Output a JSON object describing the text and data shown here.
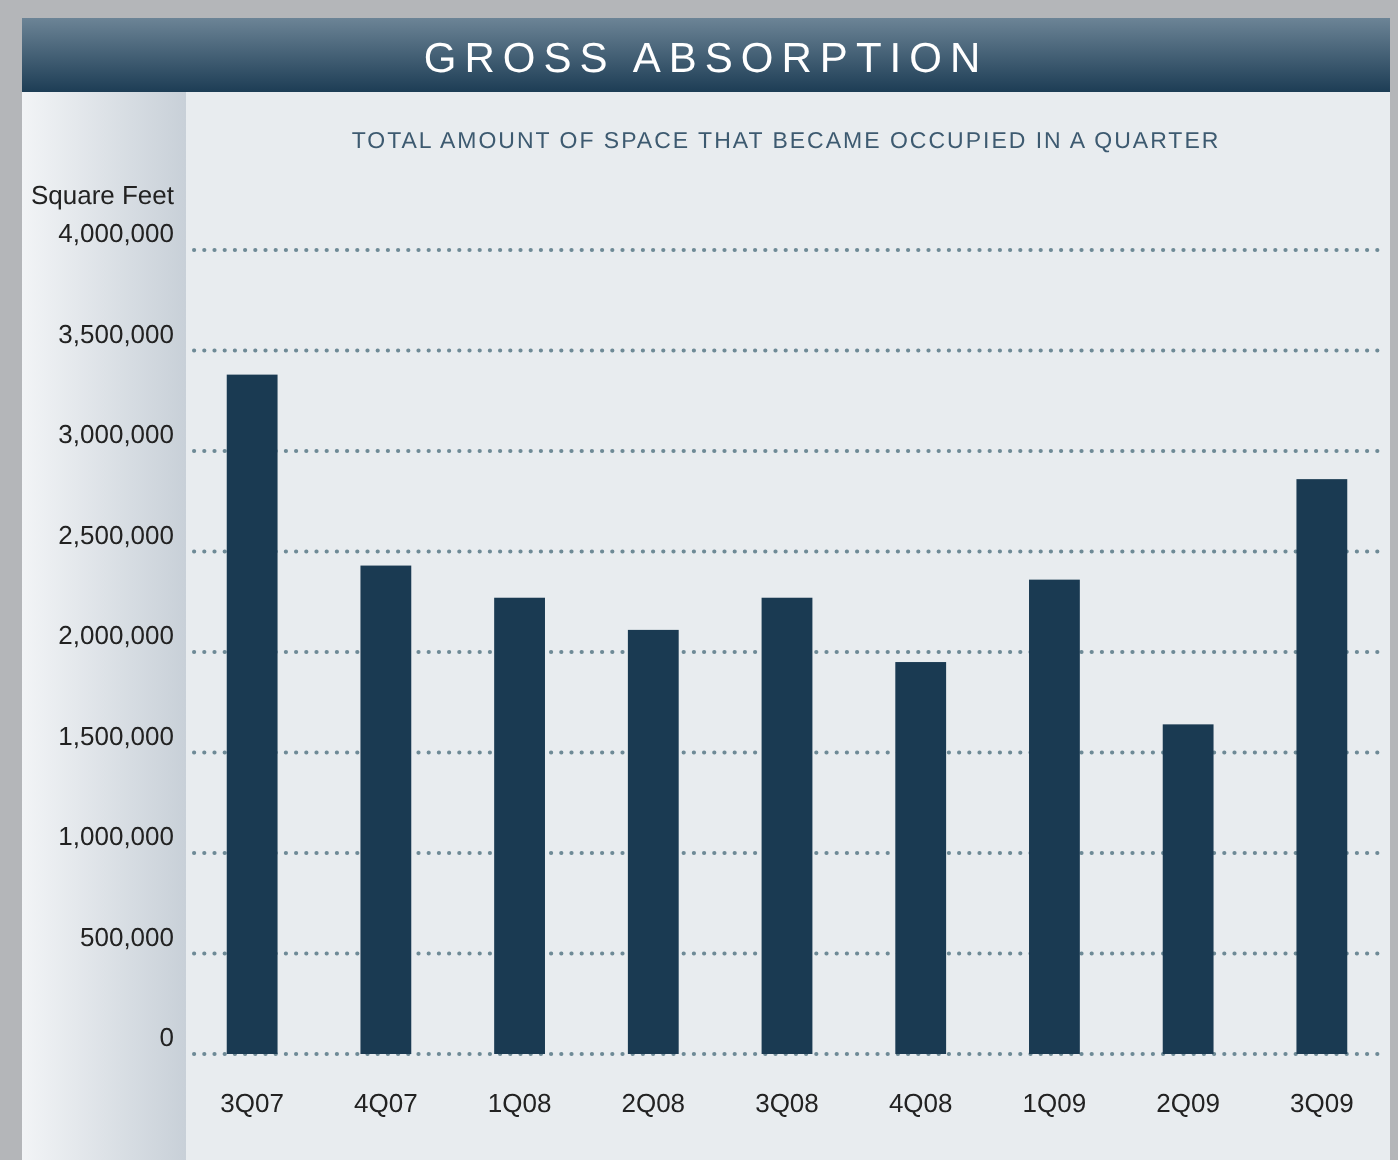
{
  "chart_data": {
    "type": "bar",
    "title": "GROSS ABSORPTION",
    "subtitle": "TOTAL AMOUNT OF SPACE THAT BECAME OCCUPIED IN A QUARTER",
    "ylabel": "Square Feet",
    "categories": [
      "3Q07",
      "4Q07",
      "1Q08",
      "2Q08",
      "3Q08",
      "4Q08",
      "1Q09",
      "2Q09",
      "3Q09"
    ],
    "values": [
      3380000,
      2430000,
      2270000,
      2110000,
      2270000,
      1950000,
      2360000,
      1640000,
      2860000
    ],
    "color": "#1a3a52",
    "ylim": [
      0,
      4000000
    ],
    "yticks": [
      {
        "value": 0,
        "label": "0"
      },
      {
        "value": 500000,
        "label": "500,000"
      },
      {
        "value": 1000000,
        "label": "1,000,000"
      },
      {
        "value": 1500000,
        "label": "1,500,000"
      },
      {
        "value": 2000000,
        "label": "2,000,000"
      },
      {
        "value": 2500000,
        "label": "2,500,000"
      },
      {
        "value": 3000000,
        "label": "3,000,000"
      },
      {
        "value": 3500000,
        "label": "3,500,000"
      },
      {
        "value": 4000000,
        "label": "4,000,000"
      }
    ],
    "grid": "y"
  }
}
